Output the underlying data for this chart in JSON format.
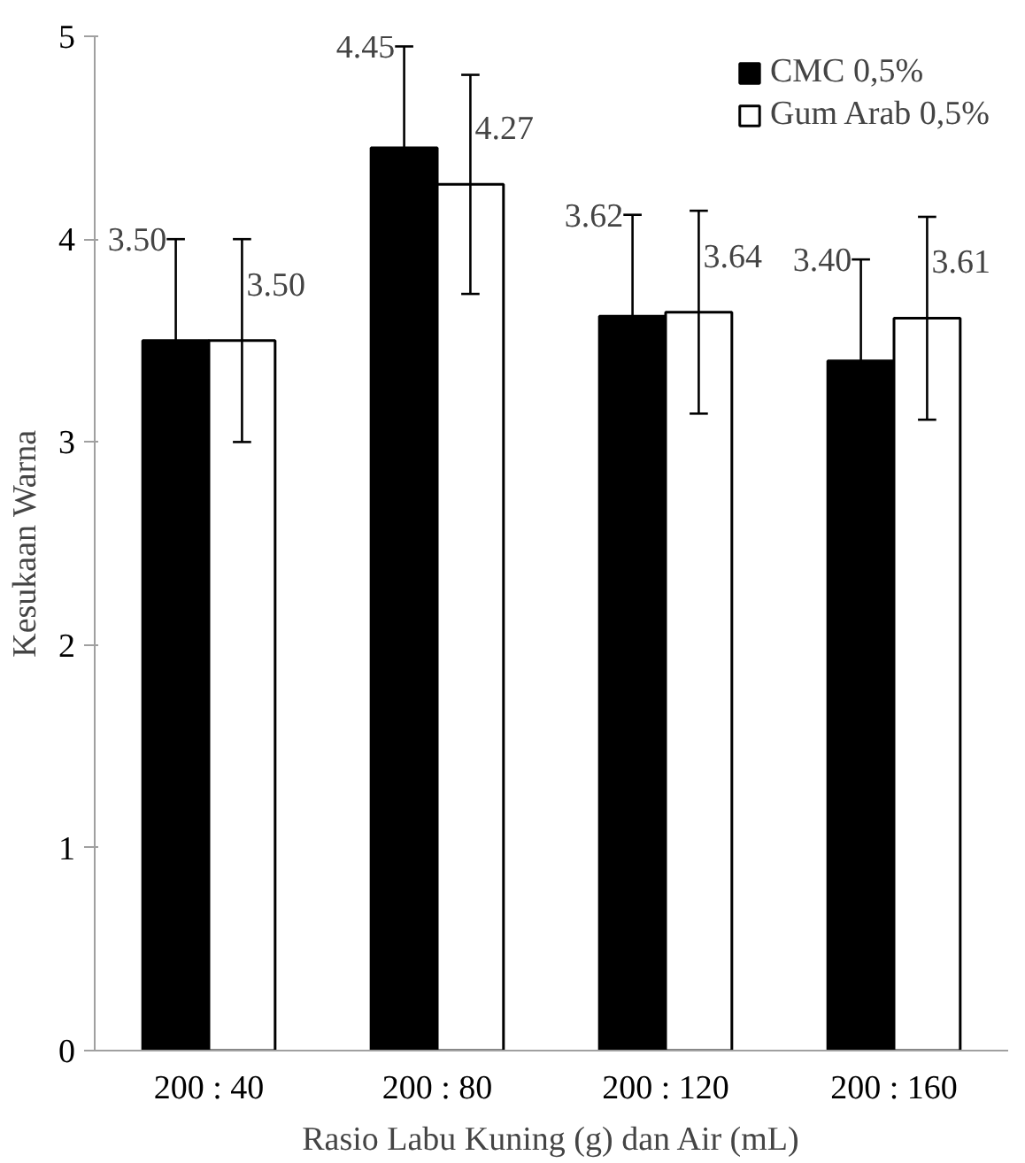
{
  "chart_data": {
    "type": "bar",
    "xlabel": "Rasio Labu Kuning (g) dan Air (mL)",
    "ylabel": "Kesukaan Warna",
    "categories": [
      "200 : 40",
      "200 : 80",
      "200 : 120",
      "200 : 160"
    ],
    "series": [
      {
        "name": "CMC 0,5%",
        "color": "#000000",
        "values": [
          3.5,
          4.45,
          3.62,
          3.4
        ],
        "errors": [
          0.5,
          0.5,
          0.5,
          0.5
        ]
      },
      {
        "name": "Gum Arab 0,5%",
        "color": "#ffffff",
        "values": [
          3.5,
          4.27,
          3.64,
          3.61
        ],
        "errors": [
          0.5,
          0.54,
          0.5,
          0.5
        ]
      }
    ],
    "value_labels": [
      [
        "3.50",
        "4.45",
        "3.62",
        "3.40"
      ],
      [
        "3.50",
        "4.27",
        "3.64",
        "3.61"
      ]
    ],
    "ylim": [
      0,
      5
    ],
    "yticks": [
      0,
      1,
      2,
      3,
      4,
      5
    ],
    "grid": false,
    "legend": "top right"
  }
}
